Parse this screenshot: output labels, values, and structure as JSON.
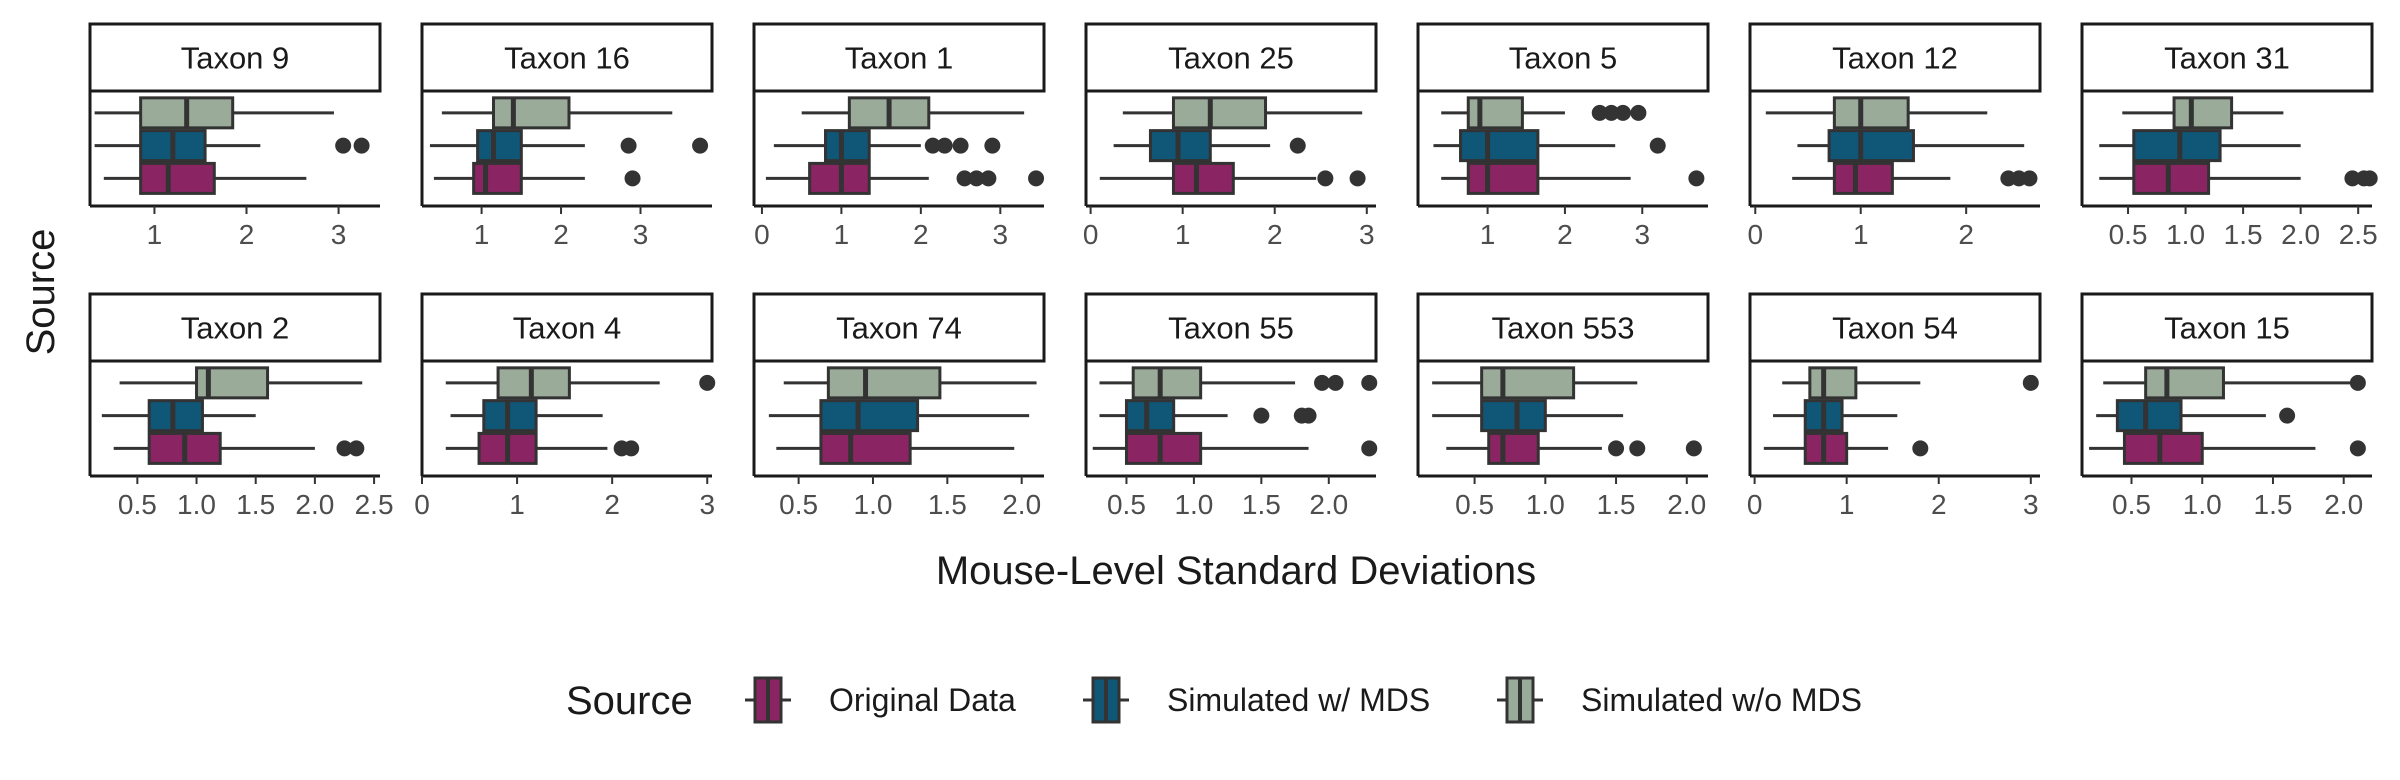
{
  "chart_data": {
    "type": "boxplot",
    "xlabel": "Mouse-Level Standard Deviations",
    "ylabel": "Source",
    "legend": {
      "title": "Source",
      "position": "bottom",
      "entries": [
        "Original Data",
        "Simulated w/ MDS",
        "Simulated w/o MDS"
      ]
    },
    "series_colors": {
      "Original Data": "#8b2462",
      "Simulated w/ MDS": "#0f5677",
      "Simulated w/o MDS": "#9aab9a"
    },
    "series_order_top_to_bottom": [
      "Simulated w/o MDS",
      "Simulated w/ MDS",
      "Original Data"
    ],
    "grid": false,
    "facets": [
      {
        "title": "Taxon 9",
        "xlim": [
          0.3,
          3.45
        ],
        "ticks": [
          1,
          2,
          3
        ],
        "tick_labels": [
          "1",
          "2",
          "3"
        ],
        "boxes": {
          "Simulated w/o MDS": {
            "whisker_low": 0.35,
            "q1": 0.85,
            "median": 1.35,
            "q3": 1.85,
            "whisker_high": 2.95,
            "outliers": []
          },
          "Simulated w/ MDS": {
            "whisker_low": 0.35,
            "q1": 0.85,
            "median": 1.2,
            "q3": 1.55,
            "whisker_high": 2.15,
            "outliers": [
              3.05,
              3.25
            ]
          },
          "Original Data": {
            "whisker_low": 0.45,
            "q1": 0.85,
            "median": 1.15,
            "q3": 1.65,
            "whisker_high": 2.65,
            "outliers": []
          }
        }
      },
      {
        "title": "Taxon 16",
        "xlim": [
          0.25,
          3.9
        ],
        "ticks": [
          1,
          2,
          3
        ],
        "tick_labels": [
          "1",
          "2",
          "3"
        ],
        "boxes": {
          "Simulated w/o MDS": {
            "whisker_low": 0.5,
            "q1": 1.15,
            "median": 1.4,
            "q3": 2.1,
            "whisker_high": 3.4,
            "outliers": []
          },
          "Simulated w/ MDS": {
            "whisker_low": 0.35,
            "q1": 0.95,
            "median": 1.15,
            "q3": 1.5,
            "whisker_high": 2.3,
            "outliers": [
              2.85,
              3.75
            ]
          },
          "Original Data": {
            "whisker_low": 0.4,
            "q1": 0.9,
            "median": 1.05,
            "q3": 1.5,
            "whisker_high": 2.3,
            "outliers": [
              2.9
            ]
          }
        }
      },
      {
        "title": "Taxon 1",
        "xlim": [
          -0.1,
          3.55
        ],
        "ticks": [
          0,
          1,
          2,
          3
        ],
        "tick_labels": [
          "0",
          "1",
          "2",
          "3"
        ],
        "boxes": {
          "Simulated w/o MDS": {
            "whisker_low": 0.5,
            "q1": 1.1,
            "median": 1.6,
            "q3": 2.1,
            "whisker_high": 3.3,
            "outliers": []
          },
          "Simulated w/ MDS": {
            "whisker_low": 0.15,
            "q1": 0.8,
            "median": 1.0,
            "q3": 1.35,
            "whisker_high": 2.0,
            "outliers": [
              2.15,
              2.3,
              2.5,
              2.9
            ]
          },
          "Original Data": {
            "whisker_low": 0.05,
            "q1": 0.6,
            "median": 1.0,
            "q3": 1.35,
            "whisker_high": 2.1,
            "outliers": [
              2.55,
              2.7,
              2.85,
              3.45
            ]
          }
        }
      },
      {
        "title": "Taxon 25",
        "xlim": [
          -0.05,
          3.1
        ],
        "ticks": [
          0,
          1,
          2,
          3
        ],
        "tick_labels": [
          "0",
          "1",
          "2",
          "3"
        ],
        "boxes": {
          "Simulated w/o MDS": {
            "whisker_low": 0.35,
            "q1": 0.9,
            "median": 1.3,
            "q3": 1.9,
            "whisker_high": 2.95,
            "outliers": []
          },
          "Simulated w/ MDS": {
            "whisker_low": 0.25,
            "q1": 0.65,
            "median": 0.95,
            "q3": 1.3,
            "whisker_high": 1.95,
            "outliers": [
              2.25
            ]
          },
          "Original Data": {
            "whisker_low": 0.1,
            "q1": 0.9,
            "median": 1.15,
            "q3": 1.55,
            "whisker_high": 2.45,
            "outliers": [
              2.55,
              2.9
            ]
          }
        }
      },
      {
        "title": "Taxon 5",
        "xlim": [
          0.1,
          3.85
        ],
        "ticks": [
          1,
          2,
          3
        ],
        "tick_labels": [
          "1",
          "2",
          "3"
        ],
        "boxes": {
          "Simulated w/o MDS": {
            "whisker_low": 0.4,
            "q1": 0.75,
            "median": 0.9,
            "q3": 1.45,
            "whisker_high": 2.0,
            "outliers": [
              2.45,
              2.6,
              2.75,
              2.95
            ]
          },
          "Simulated w/ MDS": {
            "whisker_low": 0.3,
            "q1": 0.65,
            "median": 1.0,
            "q3": 1.65,
            "whisker_high": 2.65,
            "outliers": [
              3.2
            ]
          },
          "Original Data": {
            "whisker_low": 0.4,
            "q1": 0.75,
            "median": 1.0,
            "q3": 1.65,
            "whisker_high": 2.85,
            "outliers": [
              3.7
            ]
          }
        }
      },
      {
        "title": "Taxon 12",
        "xlim": [
          -0.05,
          2.7
        ],
        "ticks": [
          0,
          1,
          2
        ],
        "tick_labels": [
          "0",
          "1",
          "2"
        ],
        "boxes": {
          "Simulated w/o MDS": {
            "whisker_low": 0.1,
            "q1": 0.75,
            "median": 1.0,
            "q3": 1.45,
            "whisker_high": 2.2,
            "outliers": []
          },
          "Simulated w/ MDS": {
            "whisker_low": 0.4,
            "q1": 0.7,
            "median": 1.0,
            "q3": 1.5,
            "whisker_high": 2.55,
            "outliers": []
          },
          "Original Data": {
            "whisker_low": 0.35,
            "q1": 0.75,
            "median": 0.95,
            "q3": 1.3,
            "whisker_high": 1.85,
            "outliers": [
              2.4,
              2.5,
              2.6
            ]
          }
        }
      },
      {
        "title": "Taxon 31",
        "xlim": [
          0.1,
          2.62
        ],
        "ticks": [
          0.5,
          1.0,
          1.5,
          2.0,
          2.5
        ],
        "tick_labels": [
          "0.5",
          "1.0",
          "1.5",
          "2.0",
          "2.5"
        ],
        "boxes": {
          "Simulated w/o MDS": {
            "whisker_low": 0.45,
            "q1": 0.9,
            "median": 1.05,
            "q3": 1.4,
            "whisker_high": 1.85,
            "outliers": []
          },
          "Simulated w/ MDS": {
            "whisker_low": 0.25,
            "q1": 0.55,
            "median": 0.95,
            "q3": 1.3,
            "whisker_high": 2.0,
            "outliers": []
          },
          "Original Data": {
            "whisker_low": 0.25,
            "q1": 0.55,
            "median": 0.85,
            "q3": 1.2,
            "whisker_high": 2.0,
            "outliers": [
              2.45,
              2.55,
              2.6
            ]
          }
        }
      },
      {
        "title": "Taxon 2",
        "xlim": [
          0.1,
          2.55
        ],
        "ticks": [
          0.5,
          1.0,
          1.5,
          2.0,
          2.5
        ],
        "tick_labels": [
          "0.5",
          "1.0",
          "1.5",
          "2.0",
          "2.5"
        ],
        "boxes": {
          "Simulated w/o MDS": {
            "whisker_low": 0.35,
            "q1": 1.0,
            "median": 1.1,
            "q3": 1.6,
            "whisker_high": 2.4,
            "outliers": []
          },
          "Simulated w/ MDS": {
            "whisker_low": 0.2,
            "q1": 0.6,
            "median": 0.8,
            "q3": 1.05,
            "whisker_high": 1.5,
            "outliers": []
          },
          "Original Data": {
            "whisker_low": 0.3,
            "q1": 0.6,
            "median": 0.9,
            "q3": 1.2,
            "whisker_high": 2.0,
            "outliers": [
              2.25,
              2.35
            ]
          }
        }
      },
      {
        "title": "Taxon 4",
        "xlim": [
          0.0,
          3.05
        ],
        "ticks": [
          0,
          1,
          2,
          3
        ],
        "tick_labels": [
          "0",
          "1",
          "2",
          "3"
        ],
        "boxes": {
          "Simulated w/o MDS": {
            "whisker_low": 0.25,
            "q1": 0.8,
            "median": 1.15,
            "q3": 1.55,
            "whisker_high": 2.5,
            "outliers": [
              3.0
            ]
          },
          "Simulated w/ MDS": {
            "whisker_low": 0.3,
            "q1": 0.65,
            "median": 0.9,
            "q3": 1.2,
            "whisker_high": 1.9,
            "outliers": []
          },
          "Original Data": {
            "whisker_low": 0.25,
            "q1": 0.6,
            "median": 0.9,
            "q3": 1.2,
            "whisker_high": 1.95,
            "outliers": [
              2.1,
              2.2
            ]
          }
        }
      },
      {
        "title": "Taxon 74",
        "xlim": [
          0.2,
          2.15
        ],
        "ticks": [
          0.5,
          1.0,
          1.5,
          2.0
        ],
        "tick_labels": [
          "0.5",
          "1.0",
          "1.5",
          "2.0"
        ],
        "boxes": {
          "Simulated w/o MDS": {
            "whisker_low": 0.4,
            "q1": 0.7,
            "median": 0.95,
            "q3": 1.45,
            "whisker_high": 2.1,
            "outliers": []
          },
          "Simulated w/ MDS": {
            "whisker_low": 0.3,
            "q1": 0.65,
            "median": 0.9,
            "q3": 1.3,
            "whisker_high": 2.05,
            "outliers": []
          },
          "Original Data": {
            "whisker_low": 0.35,
            "q1": 0.65,
            "median": 0.85,
            "q3": 1.25,
            "whisker_high": 1.95,
            "outliers": []
          }
        }
      },
      {
        "title": "Taxon 55",
        "xlim": [
          0.2,
          2.35
        ],
        "ticks": [
          0.5,
          1.0,
          1.5,
          2.0
        ],
        "tick_labels": [
          "0.5",
          "1.0",
          "1.5",
          "2.0"
        ],
        "boxes": {
          "Simulated w/o MDS": {
            "whisker_low": 0.3,
            "q1": 0.55,
            "median": 0.75,
            "q3": 1.05,
            "whisker_high": 1.75,
            "outliers": [
              1.95,
              2.05,
              2.3
            ]
          },
          "Simulated w/ MDS": {
            "whisker_low": 0.3,
            "q1": 0.5,
            "median": 0.65,
            "q3": 0.85,
            "whisker_high": 1.25,
            "outliers": [
              1.5,
              1.8,
              1.85
            ]
          },
          "Original Data": {
            "whisker_low": 0.25,
            "q1": 0.5,
            "median": 0.75,
            "q3": 1.05,
            "whisker_high": 1.85,
            "outliers": [
              2.3
            ]
          }
        }
      },
      {
        "title": "Taxon 553",
        "xlim": [
          0.1,
          2.15
        ],
        "ticks": [
          0.5,
          1.0,
          1.5,
          2.0
        ],
        "tick_labels": [
          "0.5",
          "1.0",
          "1.5",
          "2.0"
        ],
        "boxes": {
          "Simulated w/o MDS": {
            "whisker_low": 0.2,
            "q1": 0.55,
            "median": 0.7,
            "q3": 1.2,
            "whisker_high": 1.65,
            "outliers": []
          },
          "Simulated w/ MDS": {
            "whisker_low": 0.2,
            "q1": 0.55,
            "median": 0.8,
            "q3": 1.0,
            "whisker_high": 1.55,
            "outliers": []
          },
          "Original Data": {
            "whisker_low": 0.3,
            "q1": 0.6,
            "median": 0.7,
            "q3": 0.95,
            "whisker_high": 1.4,
            "outliers": [
              1.5,
              1.65,
              2.05
            ]
          }
        }
      },
      {
        "title": "Taxon 54",
        "xlim": [
          -0.05,
          3.1
        ],
        "ticks": [
          0,
          1,
          2,
          3
        ],
        "tick_labels": [
          "0",
          "1",
          "2",
          "3"
        ],
        "boxes": {
          "Simulated w/o MDS": {
            "whisker_low": 0.3,
            "q1": 0.6,
            "median": 0.75,
            "q3": 1.1,
            "whisker_high": 1.8,
            "outliers": [
              3.0
            ]
          },
          "Simulated w/ MDS": {
            "whisker_low": 0.2,
            "q1": 0.55,
            "median": 0.75,
            "q3": 0.95,
            "whisker_high": 1.55,
            "outliers": []
          },
          "Original Data": {
            "whisker_low": 0.1,
            "q1": 0.55,
            "median": 0.75,
            "q3": 1.0,
            "whisker_high": 1.45,
            "outliers": [
              1.8
            ]
          }
        }
      },
      {
        "title": "Taxon 15",
        "xlim": [
          0.15,
          2.2
        ],
        "ticks": [
          0.5,
          1.0,
          1.5,
          2.0
        ],
        "tick_labels": [
          "0.5",
          "1.0",
          "1.5",
          "2.0"
        ],
        "boxes": {
          "Simulated w/o MDS": {
            "whisker_low": 0.3,
            "q1": 0.6,
            "median": 0.75,
            "q3": 1.15,
            "whisker_high": 2.05,
            "outliers": [
              2.1
            ]
          },
          "Simulated w/ MDS": {
            "whisker_low": 0.25,
            "q1": 0.4,
            "median": 0.6,
            "q3": 0.85,
            "whisker_high": 1.45,
            "outliers": [
              1.6
            ]
          },
          "Original Data": {
            "whisker_low": 0.2,
            "q1": 0.45,
            "median": 0.7,
            "q3": 1.0,
            "whisker_high": 1.8,
            "outliers": [
              2.1
            ]
          }
        }
      }
    ]
  }
}
